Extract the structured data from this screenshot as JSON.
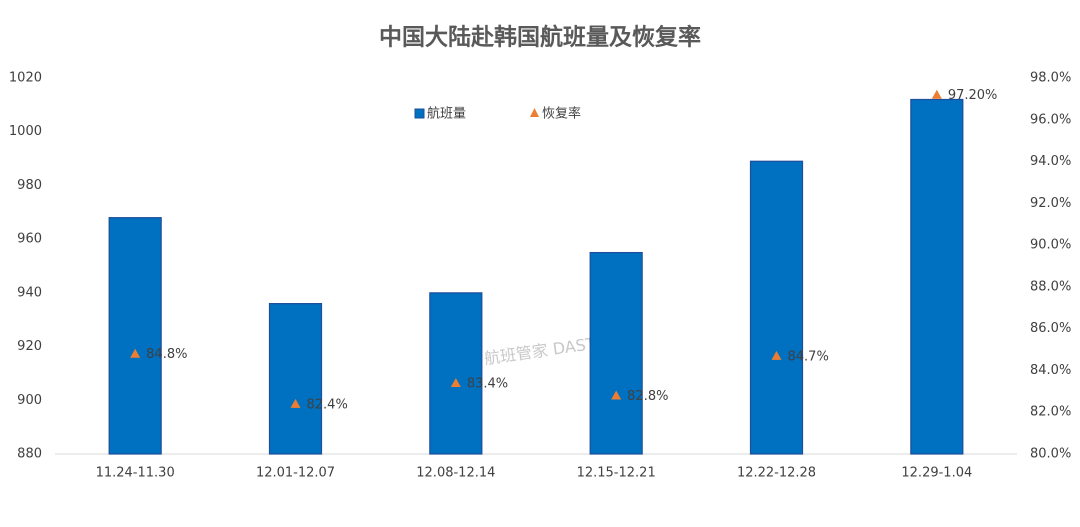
{
  "chart_data": {
    "type": "bar",
    "title": "中国大陆赴韩国航班量及恢复率",
    "categories": [
      "11.24-11.30",
      "12.01-12.07",
      "12.08-12.14",
      "12.15-12.21",
      "12.22-12.28",
      "12.29-1.04"
    ],
    "series": [
      {
        "name": "航班量",
        "type": "bar",
        "color": "#0070c0",
        "values": [
          968,
          936,
          940,
          955,
          989,
          1012
        ]
      },
      {
        "name": "恢复率",
        "type": "scatter",
        "axis": "y2",
        "color": "#ed7d31",
        "values": [
          84.8,
          82.4,
          83.4,
          82.8,
          84.7,
          97.2
        ],
        "value_labels": [
          "84.8%",
          "82.4%",
          "83.4%",
          "82.8%",
          "84.7%",
          "97.20%"
        ]
      }
    ],
    "ylim": [
      880,
      1020
    ],
    "yticks": [
      880,
      900,
      920,
      940,
      960,
      980,
      1000,
      1020
    ],
    "y2lim": [
      80,
      98
    ],
    "y2ticks": [
      {
        "value": 80,
        "label": "80.0%"
      },
      {
        "value": 82,
        "label": "82.0%"
      },
      {
        "value": 84,
        "label": "84.0%"
      },
      {
        "value": 86,
        "label": "86.0%"
      },
      {
        "value": 88,
        "label": "88.0%"
      },
      {
        "value": 90,
        "label": "90.0%"
      },
      {
        "value": 92,
        "label": "92.0%"
      },
      {
        "value": 94,
        "label": "94.0%"
      },
      {
        "value": 96,
        "label": "96.0%"
      },
      {
        "value": 98,
        "label": "98.0%"
      }
    ],
    "grid": false,
    "legend": "top",
    "watermark": "航班管家 DAST"
  }
}
